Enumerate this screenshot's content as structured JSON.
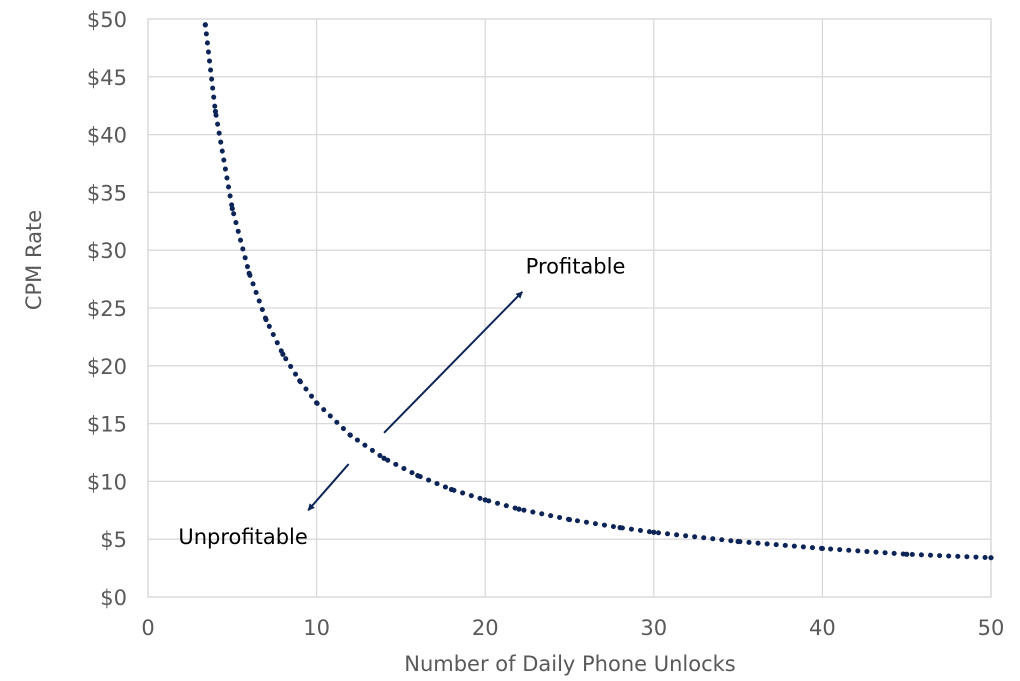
{
  "chart_data": {
    "type": "line",
    "title": "",
    "xlabel": "Number of Daily Phone Unlocks",
    "ylabel": "CPM Rate",
    "xlim": [
      0,
      50
    ],
    "ylim": [
      0,
      50
    ],
    "x_ticks": [
      0,
      10,
      20,
      30,
      40,
      50
    ],
    "x_tick_labels": [
      "0",
      "10",
      "20",
      "30",
      "40",
      "50"
    ],
    "y_ticks": [
      0,
      5,
      10,
      15,
      20,
      25,
      30,
      35,
      40,
      45,
      50
    ],
    "y_tick_labels": [
      "$0",
      "$5",
      "$10",
      "$15",
      "$20",
      "$25",
      "$30",
      "$35",
      "$40",
      "$45",
      "$50"
    ],
    "grid": true,
    "legend": "none",
    "line_style": "dotted",
    "series_color": "#0d2457",
    "grid_color": "#d9d9d9",
    "series": [
      {
        "x": [
          3.4,
          4,
          5,
          6,
          7,
          8,
          9,
          10,
          12,
          14,
          16,
          18,
          20,
          22,
          25,
          28,
          30,
          35,
          40,
          45,
          50
        ],
        "values": [
          49.5,
          42.0,
          33.6,
          28.0,
          24.0,
          21.0,
          18.7,
          16.8,
          14.0,
          12.0,
          10.5,
          9.3,
          8.4,
          7.6,
          6.7,
          6.0,
          5.6,
          4.8,
          4.2,
          3.7,
          3.4
        ]
      }
    ],
    "annotations": [
      {
        "text": "Profitable",
        "x": 22.4,
        "y": 28.0
      },
      {
        "text": "Unprofitable",
        "x": 1.8,
        "y": 4.6
      }
    ],
    "arrows": [
      {
        "from": [
          14.0,
          14.2
        ],
        "to": [
          22.2,
          26.4
        ]
      },
      {
        "from": [
          11.9,
          11.5
        ],
        "to": [
          9.5,
          7.5
        ]
      }
    ]
  }
}
